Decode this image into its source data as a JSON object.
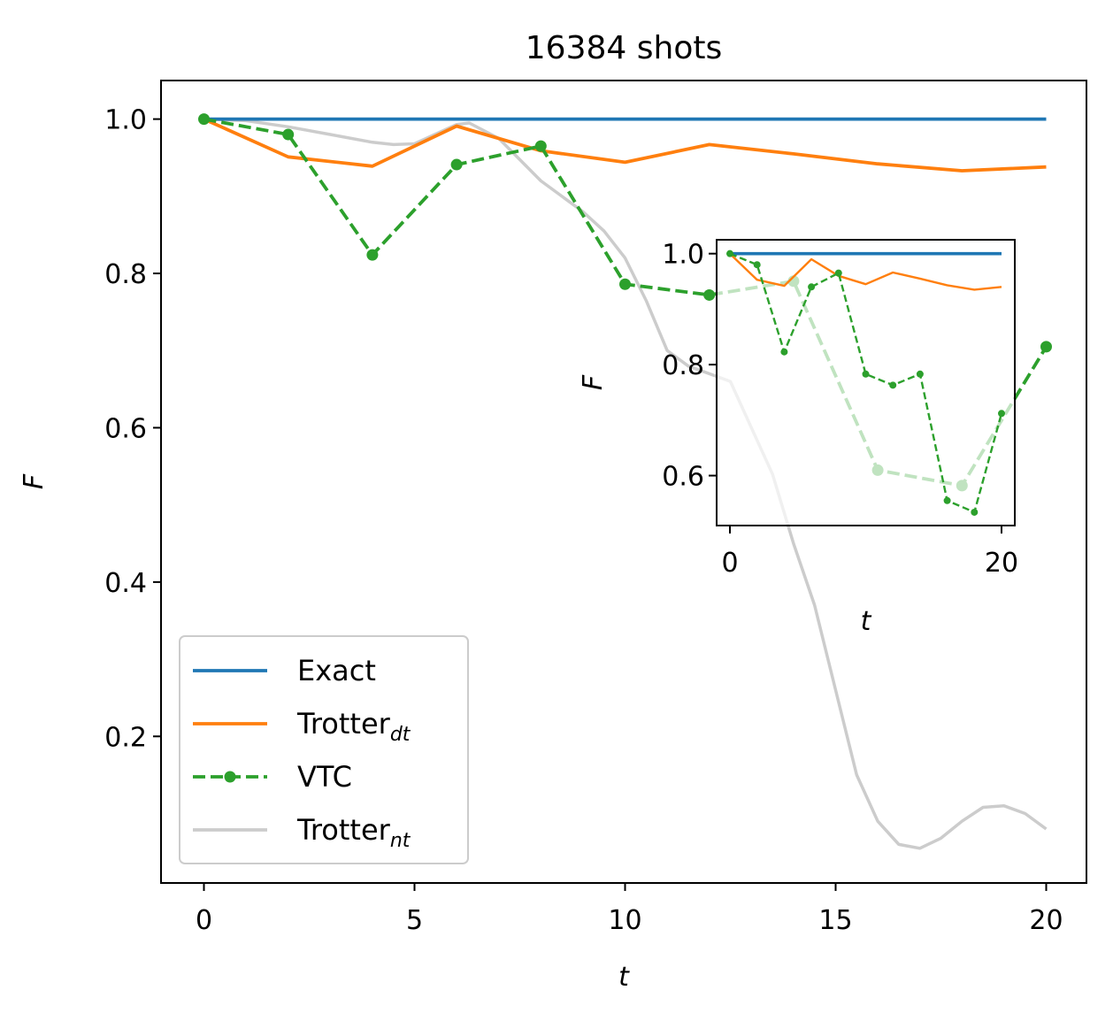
{
  "chart_data": [
    {
      "type": "line",
      "title": "16384 shots",
      "xlabel": "t",
      "ylabel": "F",
      "xlim": [
        -1,
        21
      ],
      "ylim": [
        0.01,
        1.05
      ],
      "x_ticks": [
        0,
        5,
        10,
        15,
        20
      ],
      "x_tick_labels": [
        "0",
        "5",
        "10",
        "15",
        "20"
      ],
      "y_ticks": [
        0.2,
        0.4,
        0.6,
        0.8,
        1.0
      ],
      "y_tick_labels": [
        "0.2",
        "0.4",
        "0.6",
        "0.8",
        "1.0"
      ],
      "grid": false,
      "legend_placement": "lower-left",
      "legend": [
        {
          "key": "exact",
          "label": "Exact",
          "sub": ""
        },
        {
          "key": "trotter_dt",
          "label": "Trotter",
          "sub": "dt"
        },
        {
          "key": "vtc",
          "label": "VTC",
          "sub": ""
        },
        {
          "key": "trotter_nt",
          "label": "Trotter",
          "sub": "nt"
        }
      ],
      "series": [
        {
          "key": "exact",
          "name": "Exact",
          "color": "#1f77b4",
          "style": "solid",
          "x": [
            0,
            20
          ],
          "y": [
            1.0,
            1.0
          ]
        },
        {
          "key": "trotter_dt",
          "name": "Trotter_dt",
          "color": "#ff7f0e",
          "style": "solid",
          "x": [
            0,
            2,
            4,
            6,
            8,
            10,
            12,
            14,
            16,
            18,
            20
          ],
          "y": [
            1.0,
            0.951,
            0.939,
            0.991,
            0.959,
            0.944,
            0.967,
            0.955,
            0.942,
            0.933,
            0.938
          ]
        },
        {
          "key": "vtc",
          "name": "VTC",
          "color": "#2ca02c",
          "style": "dashed-markers",
          "x": [
            0,
            2,
            4,
            6,
            8,
            10,
            12,
            14,
            16,
            18,
            20
          ],
          "y": [
            1.0,
            0.98,
            0.824,
            0.941,
            0.965,
            0.786,
            0.772,
            0.79,
            0.545,
            0.525,
            0.705
          ],
          "faded_from_x": 12
        },
        {
          "key": "trotter_nt",
          "name": "Trotter_nt",
          "color": "#cccccc",
          "style": "solid",
          "x": [
            0,
            1,
            2,
            3,
            4,
            4.5,
            5,
            6,
            6.3,
            7,
            8,
            9,
            9.5,
            10,
            10.5,
            11,
            11.5,
            12,
            12.5,
            13,
            13.5,
            14,
            14.5,
            15,
            15.5,
            16,
            16.5,
            17,
            17.5,
            18,
            18.5,
            19,
            19.5,
            20
          ],
          "y": [
            1.0,
            0.998,
            0.99,
            0.98,
            0.97,
            0.967,
            0.968,
            0.993,
            0.995,
            0.975,
            0.92,
            0.88,
            0.855,
            0.82,
            0.765,
            0.7,
            0.68,
            0.67,
            0.66,
            0.6,
            0.54,
            0.45,
            0.37,
            0.26,
            0.15,
            0.09,
            0.06,
            0.055,
            0.068,
            0.09,
            0.108,
            0.11,
            0.1,
            0.08
          ]
        }
      ]
    },
    {
      "type": "line",
      "title": "",
      "xlabel": "t",
      "ylabel": "F",
      "xlim": [
        -1,
        21
      ],
      "ylim": [
        0.51,
        1.025
      ],
      "x_ticks": [
        0,
        20
      ],
      "x_tick_labels": [
        "0",
        "20"
      ],
      "y_ticks": [
        0.6,
        0.8,
        1.0
      ],
      "y_tick_labels": [
        "0.6",
        "0.8",
        "1.0"
      ],
      "series": [
        {
          "key": "exact",
          "color": "#1f77b4",
          "x": [
            0,
            20
          ],
          "y": [
            1.0,
            1.0
          ]
        },
        {
          "key": "trotter_dt",
          "color": "#ff7f0e",
          "x": [
            0,
            2,
            4,
            6,
            8,
            10,
            12,
            14,
            16,
            18,
            20
          ],
          "y": [
            1.0,
            0.953,
            0.942,
            0.99,
            0.96,
            0.945,
            0.966,
            0.955,
            0.943,
            0.935,
            0.94
          ]
        },
        {
          "key": "vtc",
          "color": "#2ca02c",
          "x": [
            0,
            2,
            4,
            6,
            8,
            10,
            12,
            14,
            16,
            18,
            20
          ],
          "y": [
            1.0,
            0.98,
            0.823,
            0.94,
            0.965,
            0.783,
            0.763,
            0.783,
            0.555,
            0.534,
            0.712
          ]
        }
      ]
    }
  ]
}
